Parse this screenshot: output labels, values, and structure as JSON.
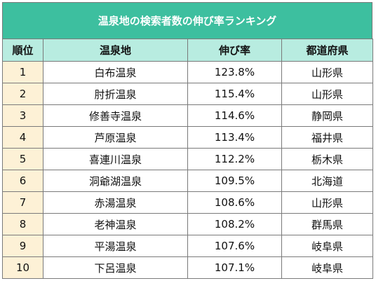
{
  "title": "温泉地の検索者数の伸び率ランキング",
  "headers": {
    "rank": "順位",
    "name": "温泉地",
    "rate": "伸び率",
    "pref": "都道府県"
  },
  "rows": [
    {
      "rank": "1",
      "name": "白布温泉",
      "rate": "123.8%",
      "pref": "山形県"
    },
    {
      "rank": "2",
      "name": "肘折温泉",
      "rate": "115.4%",
      "pref": "山形県"
    },
    {
      "rank": "3",
      "name": "修善寺温泉",
      "rate": "114.6%",
      "pref": "静岡県"
    },
    {
      "rank": "4",
      "name": "芦原温泉",
      "rate": "113.4%",
      "pref": "福井県"
    },
    {
      "rank": "5",
      "name": "喜連川温泉",
      "rate": "112.2%",
      "pref": "栃木県"
    },
    {
      "rank": "6",
      "name": "洞爺湖温泉",
      "rate": "109.5%",
      "pref": "北海道"
    },
    {
      "rank": "7",
      "name": "赤湯温泉",
      "rate": "108.6%",
      "pref": "山形県"
    },
    {
      "rank": "8",
      "name": "老神温泉",
      "rate": "108.2%",
      "pref": "群馬県"
    },
    {
      "rank": "9",
      "name": "平湯温泉",
      "rate": "107.6%",
      "pref": "岐阜県"
    },
    {
      "rank": "10",
      "name": "下呂温泉",
      "rate": "107.1%",
      "pref": "岐阜県"
    }
  ],
  "colors": {
    "title_bg": "#3dbf9f",
    "header_bg": "#b8ece0",
    "rank_bg": "#fdf1d6",
    "border": "#7a7a7a"
  }
}
